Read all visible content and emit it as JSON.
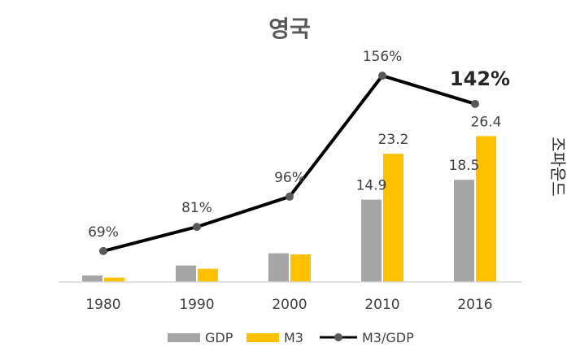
{
  "chart_data": {
    "type": "bar",
    "title": "영국",
    "unit_label": "조파운드",
    "categories": [
      "1980",
      "1990",
      "2000",
      "2010",
      "2016"
    ],
    "series": [
      {
        "name": "GDP",
        "kind": "bar",
        "color": "#a6a6a6",
        "values": [
          1.2,
          3.0,
          5.2,
          14.9,
          18.5
        ],
        "labels": [
          "",
          "",
          "",
          "14.9",
          "18.5"
        ]
      },
      {
        "name": "M3",
        "kind": "bar",
        "color": "#ffc000",
        "values": [
          0.8,
          2.4,
          5.0,
          23.2,
          26.4
        ],
        "labels": [
          "",
          "",
          "",
          "23.2",
          "26.4"
        ]
      },
      {
        "name": "M3/GDP",
        "kind": "line",
        "color": "#000000",
        "marker_color": "#595959",
        "values": [
          69,
          81,
          96,
          156,
          142
        ],
        "labels": [
          "69%",
          "81%",
          "96%",
          "156%",
          "142%"
        ]
      }
    ],
    "highlight_label_index": 4,
    "legend": {
      "position": "bottom",
      "items": [
        "GDP",
        "M3",
        "M3/GDP"
      ]
    },
    "grid": false
  }
}
